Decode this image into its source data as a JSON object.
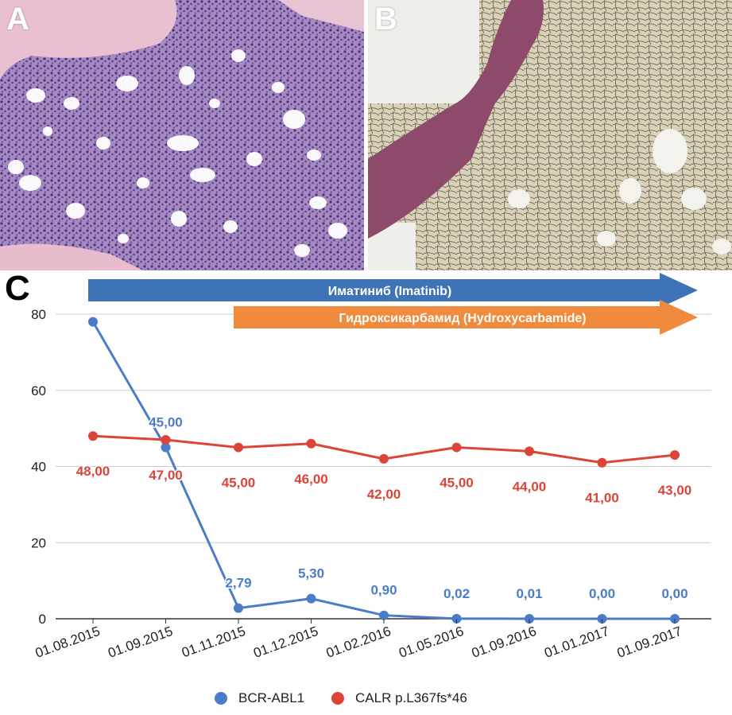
{
  "panels": {
    "a_letter": "A",
    "b_letter": "B",
    "c_letter": "C"
  },
  "chart_data": {
    "type": "line",
    "categories": [
      "01.08.2015",
      "01.09.2015",
      "01.11.2015",
      "01.12.2015",
      "01.02.2016",
      "01.05.2016",
      "01.09.2016",
      "01.01.2017",
      "01.09.2017"
    ],
    "series": [
      {
        "name": "BCR-ABL1",
        "color": "#4a7cc9",
        "values": [
          78,
          45.0,
          2.79,
          5.3,
          0.9,
          0.02,
          0.01,
          0.0,
          0.0
        ],
        "labels": [
          "",
          "45,00",
          "2,79",
          "5,30",
          "0,90",
          "0,02",
          "0,01",
          "0,00",
          "0,00"
        ]
      },
      {
        "name": "CALR p.L367fs*46",
        "color": "#dc4438",
        "values": [
          48,
          47,
          45,
          46,
          42,
          45,
          44,
          41,
          43
        ],
        "labels": [
          "48,00",
          "47,00",
          "45,00",
          "46,00",
          "42,00",
          "45,00",
          "44,00",
          "41,00",
          "43,00"
        ]
      }
    ],
    "ylim": [
      0,
      80
    ],
    "yticks": [
      0,
      20,
      40,
      60,
      80
    ],
    "grid": true,
    "legend_position": "bottom",
    "therapy_arrows": [
      {
        "label": "Иматиниб (Imatinib)",
        "color": "#3f73b8",
        "start_category": "01.08.2015"
      },
      {
        "label": "Гидроксикарбамид (Hydroxycarbamide)",
        "color": "#f08a3c",
        "start_category": "01.11.2015"
      }
    ]
  }
}
